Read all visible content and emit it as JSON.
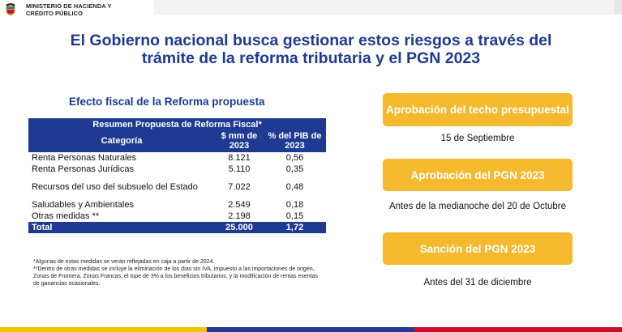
{
  "ministry": {
    "line1": "MINISTERIO DE HACIENDA Y",
    "line2": "CRÉDITO PÚBLICO"
  },
  "title": {
    "line1": "El Gobierno nacional busca gestionar estos riesgos a través del",
    "line2": "trámite de la reforma tributaria y el PGN 2023"
  },
  "table_section": {
    "heading": "Efecto fiscal de la Reforma propuesta",
    "summary_header": "Resumen Propuesta de Reforma Fiscal*",
    "columns": [
      "Categoría",
      "$ mm de 2023",
      "% del PIB de 2023"
    ],
    "rows": [
      {
        "categoria": "Renta Personas Naturales",
        "mm": "8.121",
        "pib": "0,56"
      },
      {
        "categoria": "Renta Personas Jurídicas",
        "mm": "5.110",
        "pib": "0,35"
      },
      {
        "categoria": "Recursos del uso del subsuelo del Estado",
        "mm": "7.022",
        "pib": "0,48"
      },
      {
        "categoria": "Saludables y Ambientales",
        "mm": "2.549",
        "pib": "0,18"
      },
      {
        "categoria": "Otras medidas **",
        "mm": "2.198",
        "pib": "0,15"
      }
    ],
    "total": {
      "categoria": "Total",
      "mm": "25.000",
      "pib": "1,72"
    },
    "notes": [
      "*Algunas de estas medidas se verán reflejadas en caja a partir de 2024.",
      "**Dentro de otras medidas se incluye la eliminación de los días sin IVA, impuesto a las importaciones de origen, Zonas de Frontera, Zonas Francas, el tope de 3% a los beneficios tributarios, y la modificación de rentas exentas de ganancias ocasionales."
    ]
  },
  "stages": [
    {
      "label": "Aprobación del techo presupuestal",
      "date": "15 de Septiembre"
    },
    {
      "label": "Aprobación del PGN 2023",
      "date": "Antes de la medianoche del 20 de Octubre"
    },
    {
      "label": "Sanción del PGN 2023",
      "date": "Antes del 31 de diciembre"
    }
  ],
  "colors": {
    "title_blue": "#1f3a93",
    "table_blue": "#1f3a93",
    "stage_yellow": "#f4b92d",
    "footer": [
      "#f5c300",
      "#1f3a93",
      "#c8102e"
    ]
  },
  "icons": {
    "crest": "colombia-coat-of-arms-icon"
  }
}
